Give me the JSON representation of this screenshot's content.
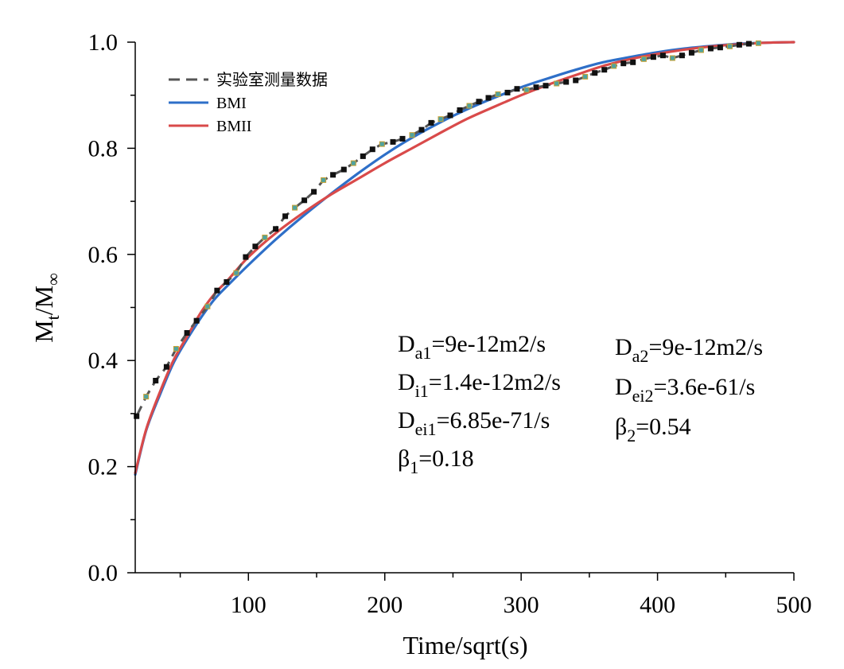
{
  "chart_data": {
    "type": "line",
    "xlabel": "Time/sqrt(s)",
    "ylabel_main": "M",
    "ylabel_sub1": "t",
    "ylabel_mid": "/M",
    "ylabel_sub2": "∞",
    "xlim": [
      17,
      500
    ],
    "ylim": [
      0,
      1.0
    ],
    "x_ticks": [
      100,
      200,
      300,
      400,
      500
    ],
    "x_tick_labels": [
      "100",
      "200",
      "300",
      "400",
      "500"
    ],
    "y_ticks": [
      0,
      0.2,
      0.4,
      0.6,
      0.8,
      1.0
    ],
    "y_tick_labels": [
      "0.0",
      "0.2",
      "0.4",
      "0.6",
      "0.8",
      "1.0"
    ],
    "legend_position": "top-left",
    "series": [
      {
        "name": "实验室测量数据",
        "color": "#555555",
        "style": "dashed",
        "x": [
          18,
          25,
          32,
          40,
          47,
          55,
          62,
          70,
          77,
          84,
          91,
          98,
          105,
          112,
          120,
          127,
          134,
          141,
          148,
          155,
          162,
          170,
          177,
          184,
          191,
          198,
          206,
          213,
          220,
          227,
          234,
          241,
          248,
          255,
          262,
          269,
          276,
          283,
          290,
          297,
          304,
          311,
          318,
          326,
          333,
          340,
          347,
          354,
          361,
          368,
          375,
          382,
          390,
          397,
          404,
          411,
          418,
          425,
          432,
          439,
          446,
          453,
          460,
          467,
          474
        ],
        "y": [
          0.295,
          0.332,
          0.362,
          0.388,
          0.422,
          0.452,
          0.475,
          0.502,
          0.532,
          0.548,
          0.565,
          0.595,
          0.615,
          0.632,
          0.648,
          0.672,
          0.688,
          0.702,
          0.718,
          0.74,
          0.75,
          0.76,
          0.772,
          0.785,
          0.798,
          0.808,
          0.812,
          0.818,
          0.825,
          0.835,
          0.848,
          0.855,
          0.862,
          0.872,
          0.88,
          0.888,
          0.895,
          0.902,
          0.905,
          0.912,
          0.91,
          0.915,
          0.918,
          0.922,
          0.925,
          0.928,
          0.935,
          0.942,
          0.948,
          0.955,
          0.96,
          0.962,
          0.968,
          0.972,
          0.975,
          0.97,
          0.975,
          0.98,
          0.985,
          0.988,
          0.99,
          0.992,
          0.995,
          0.997,
          0.998
        ]
      },
      {
        "name": "BMI",
        "color": "#2E6FC8",
        "style": "solid",
        "x": [
          17,
          25,
          35,
          45,
          55,
          65,
          75,
          85,
          100,
          120,
          140,
          160,
          180,
          200,
          220,
          240,
          260,
          280,
          300,
          320,
          340,
          360,
          380,
          400,
          420,
          440,
          460,
          480,
          500
        ],
        "y": [
          0.185,
          0.268,
          0.335,
          0.395,
          0.44,
          0.48,
          0.515,
          0.542,
          0.58,
          0.628,
          0.672,
          0.713,
          0.752,
          0.788,
          0.82,
          0.848,
          0.873,
          0.895,
          0.915,
          0.932,
          0.948,
          0.962,
          0.972,
          0.981,
          0.988,
          0.993,
          0.997,
          0.999,
          1.0
        ]
      },
      {
        "name": "BMII",
        "color": "#D94A4A",
        "style": "solid",
        "x": [
          17,
          25,
          35,
          45,
          55,
          65,
          75,
          85,
          100,
          120,
          140,
          160,
          180,
          200,
          220,
          240,
          260,
          280,
          300,
          320,
          340,
          360,
          380,
          400,
          420,
          440,
          460,
          480,
          500
        ],
        "y": [
          0.188,
          0.27,
          0.34,
          0.4,
          0.445,
          0.49,
          0.525,
          0.552,
          0.595,
          0.64,
          0.678,
          0.712,
          0.742,
          0.772,
          0.8,
          0.828,
          0.855,
          0.878,
          0.9,
          0.92,
          0.938,
          0.955,
          0.968,
          0.978,
          0.986,
          0.992,
          0.996,
          0.999,
          1.0
        ]
      }
    ],
    "annotations": {
      "left": [
        {
          "base": "D",
          "sub": "a1",
          "rest": "=9e-12m2/s"
        },
        {
          "base": "D",
          "sub": "i1",
          "rest": "=1.4e-12m2/s"
        },
        {
          "base": "D",
          "sub": "ei1",
          "rest": "=6.85e-71/s"
        },
        {
          "base": "β",
          "sub": "1",
          "rest": "=0.18"
        }
      ],
      "right": [
        {
          "base": "D",
          "sub": "a2",
          "rest": "=9e-12m2/s"
        },
        {
          "base": "D",
          "sub": "ei2",
          "rest": "=3.6e-61/s"
        },
        {
          "base": "β",
          "sub": "2",
          "rest": "=0.54"
        }
      ]
    }
  }
}
